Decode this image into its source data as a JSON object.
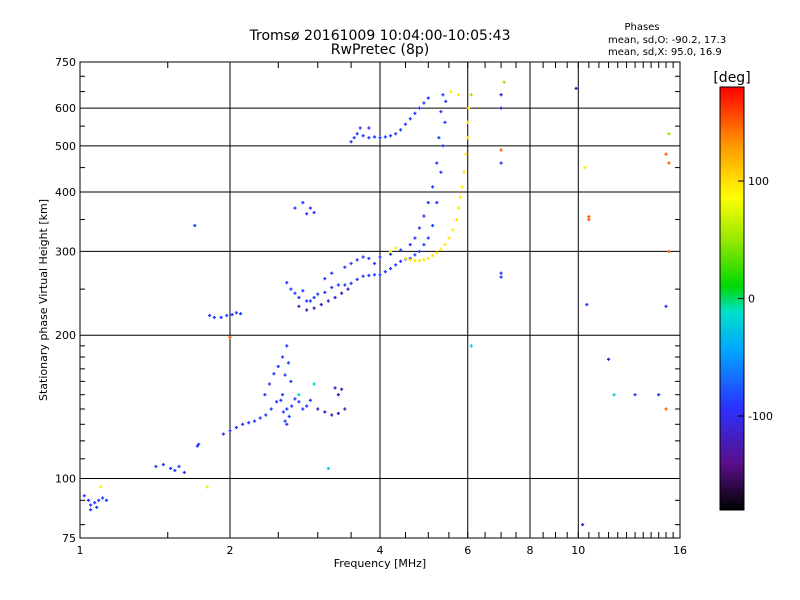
{
  "chart_data": {
    "type": "scatter",
    "title": "Tromsø 20161009 10:04:00-10:05:43",
    "subtitle": "RwPretec (8p)",
    "stats_header": "Phases",
    "stats": [
      "mean, sd,O: -90.2, 17.3",
      "mean, sd,X:  95.0, 16.9"
    ],
    "xlabel": "Frequency [MHz]",
    "ylabel": "Stationary phase Virtual Height [km]",
    "x_scale": "log",
    "y_scale": "log",
    "xlim": [
      1,
      16
    ],
    "ylim": [
      75,
      750
    ],
    "x_ticks": [
      1,
      2,
      4,
      6,
      8,
      10,
      16
    ],
    "x_tick_labels": [
      "1",
      "2",
      "4",
      "6",
      "8",
      "10",
      "16"
    ],
    "x_grid_lines": [
      2,
      4,
      6,
      8,
      10
    ],
    "y_ticks": [
      75,
      100,
      200,
      300,
      400,
      500,
      600,
      750
    ],
    "y_tick_labels": [
      "75",
      "100",
      "200",
      "300",
      "400",
      "500",
      "600",
      "750"
    ],
    "y_grid_lines": [
      100,
      200,
      300,
      400,
      500,
      600
    ],
    "grid": true,
    "colorbar": {
      "label": "[deg]",
      "min": -180,
      "max": 180,
      "ticks": [
        -100,
        0,
        100
      ],
      "tick_labels": [
        "-100",
        "0",
        "100"
      ]
    },
    "series": [
      {
        "phase": -90,
        "color_hint": "blue",
        "points": [
          [
            1.02,
            92
          ],
          [
            1.04,
            90
          ],
          [
            1.05,
            88
          ],
          [
            1.07,
            89
          ],
          [
            1.09,
            90
          ],
          [
            1.11,
            91
          ],
          [
            1.13,
            90
          ],
          [
            1.05,
            86
          ],
          [
            1.08,
            87
          ],
          [
            1.42,
            106
          ],
          [
            1.47,
            107
          ],
          [
            1.52,
            105
          ],
          [
            1.55,
            104
          ],
          [
            1.58,
            106
          ],
          [
            1.62,
            103
          ],
          [
            1.72,
            117
          ],
          [
            1.73,
            118
          ],
          [
            1.82,
            220
          ],
          [
            1.86,
            218
          ],
          [
            1.92,
            218
          ],
          [
            1.97,
            220
          ],
          [
            2.02,
            221
          ],
          [
            2.06,
            223
          ],
          [
            2.1,
            222
          ],
          [
            1.94,
            124
          ],
          [
            2.0,
            126
          ],
          [
            2.06,
            128
          ],
          [
            2.12,
            130
          ],
          [
            2.18,
            131
          ],
          [
            2.24,
            132
          ],
          [
            2.3,
            134
          ],
          [
            2.36,
            136
          ],
          [
            2.42,
            140
          ],
          [
            2.48,
            145
          ],
          [
            2.35,
            150
          ],
          [
            2.4,
            158
          ],
          [
            2.45,
            166
          ],
          [
            2.5,
            172
          ],
          [
            2.55,
            180
          ],
          [
            2.6,
            190
          ],
          [
            2.62,
            175
          ],
          [
            2.58,
            165
          ],
          [
            2.65,
            160
          ],
          [
            2.55,
            150
          ],
          [
            2.6,
            140
          ],
          [
            2.7,
            147
          ],
          [
            2.75,
            145
          ],
          [
            2.8,
            140
          ],
          [
            2.85,
            142
          ],
          [
            2.9,
            146
          ],
          [
            2.53,
            146
          ],
          [
            2.56,
            138
          ],
          [
            2.58,
            132
          ],
          [
            2.6,
            130
          ],
          [
            2.63,
            135
          ],
          [
            2.66,
            142
          ],
          [
            2.6,
            258
          ],
          [
            2.65,
            250
          ],
          [
            2.7,
            245
          ],
          [
            2.75,
            240
          ],
          [
            2.8,
            248
          ],
          [
            2.85,
            236
          ],
          [
            2.9,
            236
          ],
          [
            2.95,
            240
          ],
          [
            3.0,
            244
          ],
          [
            3.1,
            246
          ],
          [
            3.2,
            252
          ],
          [
            3.3,
            255
          ],
          [
            3.4,
            255
          ],
          [
            3.5,
            257
          ],
          [
            3.6,
            262
          ],
          [
            3.7,
            266
          ],
          [
            3.8,
            267
          ],
          [
            3.9,
            268
          ],
          [
            4.0,
            268
          ],
          [
            4.1,
            272
          ],
          [
            4.2,
            276
          ],
          [
            4.3,
            281
          ],
          [
            4.4,
            286
          ],
          [
            4.5,
            289
          ],
          [
            3.1,
            263
          ],
          [
            3.2,
            270
          ],
          [
            3.4,
            278
          ],
          [
            3.5,
            283
          ],
          [
            3.6,
            288
          ],
          [
            3.7,
            292
          ],
          [
            3.8,
            290
          ],
          [
            3.9,
            283
          ],
          [
            4.0,
            292
          ],
          [
            4.2,
            296
          ],
          [
            4.4,
            302
          ],
          [
            4.6,
            310
          ],
          [
            4.7,
            320
          ],
          [
            4.8,
            336
          ],
          [
            4.9,
            356
          ],
          [
            5.0,
            380
          ],
          [
            5.1,
            410
          ],
          [
            5.2,
            460
          ],
          [
            5.25,
            520
          ],
          [
            5.3,
            590
          ],
          [
            5.35,
            640
          ],
          [
            4.6,
            290
          ],
          [
            4.7,
            295
          ],
          [
            4.8,
            300
          ],
          [
            4.9,
            310
          ],
          [
            5.0,
            320
          ],
          [
            5.1,
            340
          ],
          [
            5.2,
            380
          ],
          [
            5.3,
            440
          ],
          [
            5.35,
            500
          ],
          [
            5.4,
            560
          ],
          [
            5.42,
            620
          ],
          [
            2.7,
            370
          ],
          [
            2.8,
            380
          ],
          [
            2.9,
            370
          ],
          [
            2.85,
            360
          ],
          [
            2.95,
            362
          ],
          [
            3.5,
            510
          ],
          [
            3.55,
            520
          ],
          [
            3.6,
            530
          ],
          [
            3.7,
            525
          ],
          [
            3.8,
            520
          ],
          [
            3.9,
            522
          ],
          [
            4.0,
            520
          ],
          [
            4.1,
            522
          ],
          [
            4.2,
            525
          ],
          [
            4.3,
            530
          ],
          [
            4.4,
            540
          ],
          [
            4.5,
            555
          ],
          [
            4.6,
            570
          ],
          [
            4.7,
            585
          ],
          [
            4.8,
            600
          ],
          [
            4.9,
            615
          ],
          [
            5.0,
            630
          ],
          [
            3.65,
            545
          ],
          [
            3.8,
            545
          ],
          [
            1.7,
            340
          ],
          [
            7.0,
            460
          ],
          [
            7.0,
            270
          ],
          [
            7.0,
            265
          ],
          [
            10.4,
            232
          ],
          [
            15.0,
            230
          ],
          [
            14.5,
            150
          ],
          [
            13.0,
            150
          ]
        ]
      },
      {
        "phase": -120,
        "color_hint": "purple",
        "points": [
          [
            2.75,
            230
          ],
          [
            2.85,
            226
          ],
          [
            2.95,
            228
          ],
          [
            3.05,
            232
          ],
          [
            3.15,
            236
          ],
          [
            3.25,
            240
          ],
          [
            3.35,
            245
          ],
          [
            3.45,
            250
          ],
          [
            3.0,
            140
          ],
          [
            3.1,
            138
          ],
          [
            3.2,
            136
          ],
          [
            3.3,
            137
          ],
          [
            3.4,
            140
          ],
          [
            3.3,
            150
          ],
          [
            3.25,
            155
          ],
          [
            3.35,
            154
          ],
          [
            7.0,
            640
          ],
          [
            7.0,
            600
          ],
          [
            9.9,
            660
          ],
          [
            11.5,
            178
          ],
          [
            10.2,
            80
          ]
        ]
      },
      {
        "phase": 95,
        "color_hint": "yellow",
        "points": [
          [
            4.5,
            290
          ],
          [
            4.6,
            288
          ],
          [
            4.7,
            287
          ],
          [
            4.8,
            287
          ],
          [
            4.9,
            288
          ],
          [
            5.0,
            290
          ],
          [
            5.1,
            294
          ],
          [
            5.2,
            298
          ],
          [
            5.3,
            303
          ],
          [
            5.4,
            310
          ],
          [
            5.5,
            320
          ],
          [
            5.6,
            333
          ],
          [
            5.7,
            350
          ],
          [
            5.75,
            370
          ],
          [
            5.8,
            390
          ],
          [
            5.85,
            410
          ],
          [
            5.9,
            440
          ],
          [
            5.95,
            480
          ],
          [
            6.0,
            520
          ],
          [
            6.0,
            560
          ],
          [
            6.02,
            600
          ],
          [
            5.75,
            640
          ],
          [
            5.55,
            650
          ],
          [
            4.2,
            300
          ],
          [
            4.3,
            305
          ],
          [
            1.1,
            96
          ],
          [
            1.8,
            96
          ],
          [
            10.3,
            450
          ]
        ]
      },
      {
        "phase": 50,
        "color_hint": "green",
        "points": [
          [
            15.2,
            530
          ],
          [
            6.1,
            640
          ],
          [
            7.1,
            680
          ]
        ]
      },
      {
        "phase": 150,
        "color_hint": "orange",
        "points": [
          [
            2.0,
            198
          ],
          [
            7.0,
            490
          ],
          [
            10.5,
            350
          ],
          [
            10.5,
            355
          ],
          [
            15.0,
            480
          ],
          [
            15.2,
            460
          ],
          [
            15.2,
            300
          ],
          [
            15.0,
            140
          ]
        ]
      },
      {
        "phase": -20,
        "color_hint": "cyan",
        "points": [
          [
            2.75,
            150
          ],
          [
            2.95,
            158
          ],
          [
            3.15,
            105
          ],
          [
            6.1,
            190
          ],
          [
            11.8,
            150
          ]
        ]
      }
    ]
  }
}
